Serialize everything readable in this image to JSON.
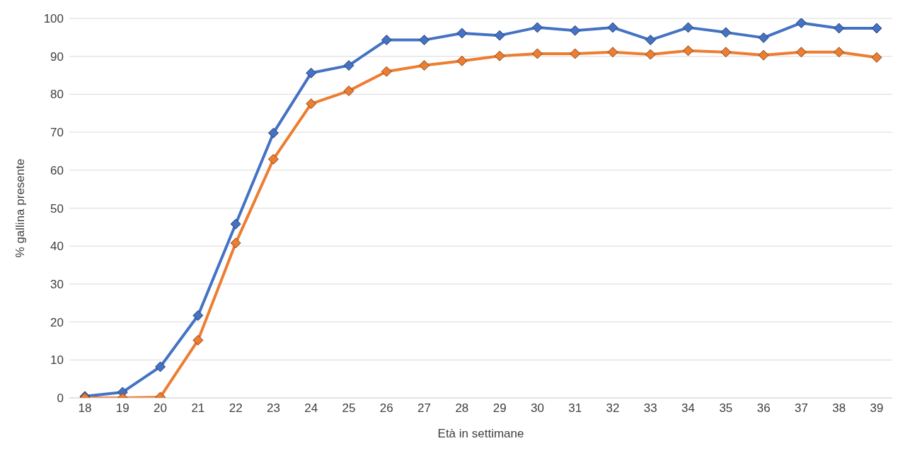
{
  "chart_data": {
    "type": "line",
    "xlabel": "Età in settimane",
    "ylabel": "% gallina presente",
    "categories": [
      "18",
      "19",
      "20",
      "21",
      "22",
      "23",
      "24",
      "25",
      "26",
      "27",
      "28",
      "29",
      "30",
      "31",
      "32",
      "33",
      "34",
      "35",
      "36",
      "37",
      "38",
      "39"
    ],
    "series": [
      {
        "color": "#4472c4",
        "values": [
          0.4,
          1.5,
          8.2,
          21.7,
          45.8,
          69.8,
          85.6,
          87.6,
          94.3,
          94.3,
          96.1,
          95.5,
          97.6,
          96.8,
          97.6,
          94.3,
          97.6,
          96.3,
          94.9,
          98.8,
          97.4,
          97.4
        ]
      },
      {
        "color": "#ed7d31",
        "values": [
          0,
          0,
          0.2,
          15.2,
          40.8,
          62.9,
          77.5,
          80.9,
          86.0,
          87.6,
          88.8,
          90.1,
          90.7,
          90.7,
          91.1,
          90.5,
          91.5,
          91.1,
          90.3,
          91.1,
          91.1,
          89.7
        ]
      }
    ],
    "ylim": [
      0,
      100
    ],
    "yticks": [
      0,
      10,
      20,
      30,
      40,
      50,
      60,
      70,
      80,
      90,
      100
    ],
    "grid": "y",
    "marker": "diamond",
    "line_style": "solid"
  }
}
